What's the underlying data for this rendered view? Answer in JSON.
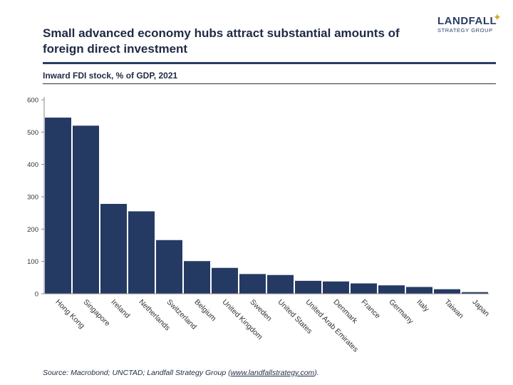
{
  "header": {
    "title": "Small advanced economy hubs attract substantial amounts of foreign direct investment",
    "logo_main": "LANDFALL",
    "logo_sub": "STRATEGY GROUP",
    "logo_star": "✦"
  },
  "chart_data": {
    "type": "bar",
    "title": "Inward FDI stock, % of GDP, 2021",
    "categories": [
      "Hong Kong",
      "Singapore",
      "Ireland",
      "Netherlands",
      "Switzerland",
      "Belgium",
      "United Kingdom",
      "Sweden",
      "United States",
      "United Arab Emirates",
      "Denmark",
      "France",
      "Germany",
      "Italy",
      "Taiwan",
      "Japan"
    ],
    "values": [
      545,
      520,
      278,
      255,
      166,
      101,
      80,
      61,
      58,
      40,
      38,
      32,
      26,
      21,
      14,
      5
    ],
    "ylim": [
      0,
      600
    ],
    "yticks": [
      0,
      100,
      200,
      300,
      400,
      500,
      600
    ],
    "xlabel": "",
    "ylabel": "",
    "grid": false,
    "bar_color": "#253a63"
  },
  "footer": {
    "source_prefix": "Source: Macrobond; UNCTAD; Landfall Strategy Group (",
    "source_link": "www.landfallstrategy.com",
    "source_suffix": ")."
  }
}
